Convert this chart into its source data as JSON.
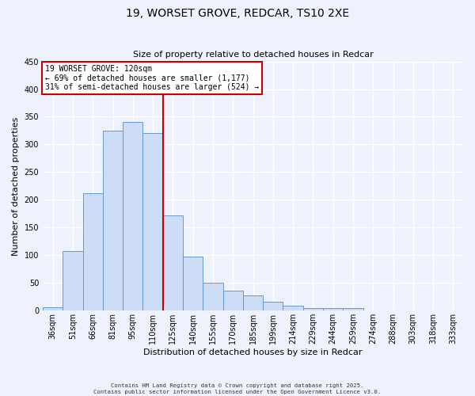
{
  "title": "19, WORSET GROVE, REDCAR, TS10 2XE",
  "subtitle": "Size of property relative to detached houses in Redcar",
  "xlabel": "Distribution of detached houses by size in Redcar",
  "ylabel": "Number of detached properties",
  "bar_labels": [
    "36sqm",
    "51sqm",
    "66sqm",
    "81sqm",
    "95sqm",
    "110sqm",
    "125sqm",
    "140sqm",
    "155sqm",
    "170sqm",
    "185sqm",
    "199sqm",
    "214sqm",
    "229sqm",
    "244sqm",
    "259sqm",
    "274sqm",
    "288sqm",
    "303sqm",
    "318sqm",
    "333sqm"
  ],
  "bar_values": [
    6,
    107,
    212,
    325,
    340,
    320,
    172,
    98,
    50,
    36,
    28,
    16,
    9,
    5,
    4,
    4,
    0,
    0,
    0,
    0,
    0
  ],
  "bar_color": "#ccddf5",
  "bar_edge_color": "#6699cc",
  "highlight_bar_index": 5,
  "highlight_line_color": "#cc0000",
  "ylim": [
    0,
    450
  ],
  "yticks": [
    0,
    50,
    100,
    150,
    200,
    250,
    300,
    350,
    400,
    450
  ],
  "annotation_title": "19 WORSET GROVE: 120sqm",
  "annotation_line1": "← 69% of detached houses are smaller (1,177)",
  "annotation_line2": "31% of semi-detached houses are larger (524) →",
  "annotation_box_facecolor": "#ffffff",
  "annotation_box_edgecolor": "#cc0000",
  "footer_line1": "Contains HM Land Registry data © Crown copyright and database right 2025.",
  "footer_line2": "Contains public sector information licensed under the Open Government Licence v3.0.",
  "background_color": "#eef2fc",
  "grid_color": "#ffffff",
  "tick_label_fontsize": 7,
  "axis_label_fontsize": 8,
  "title_fontsize": 10,
  "annotation_fontsize": 7
}
